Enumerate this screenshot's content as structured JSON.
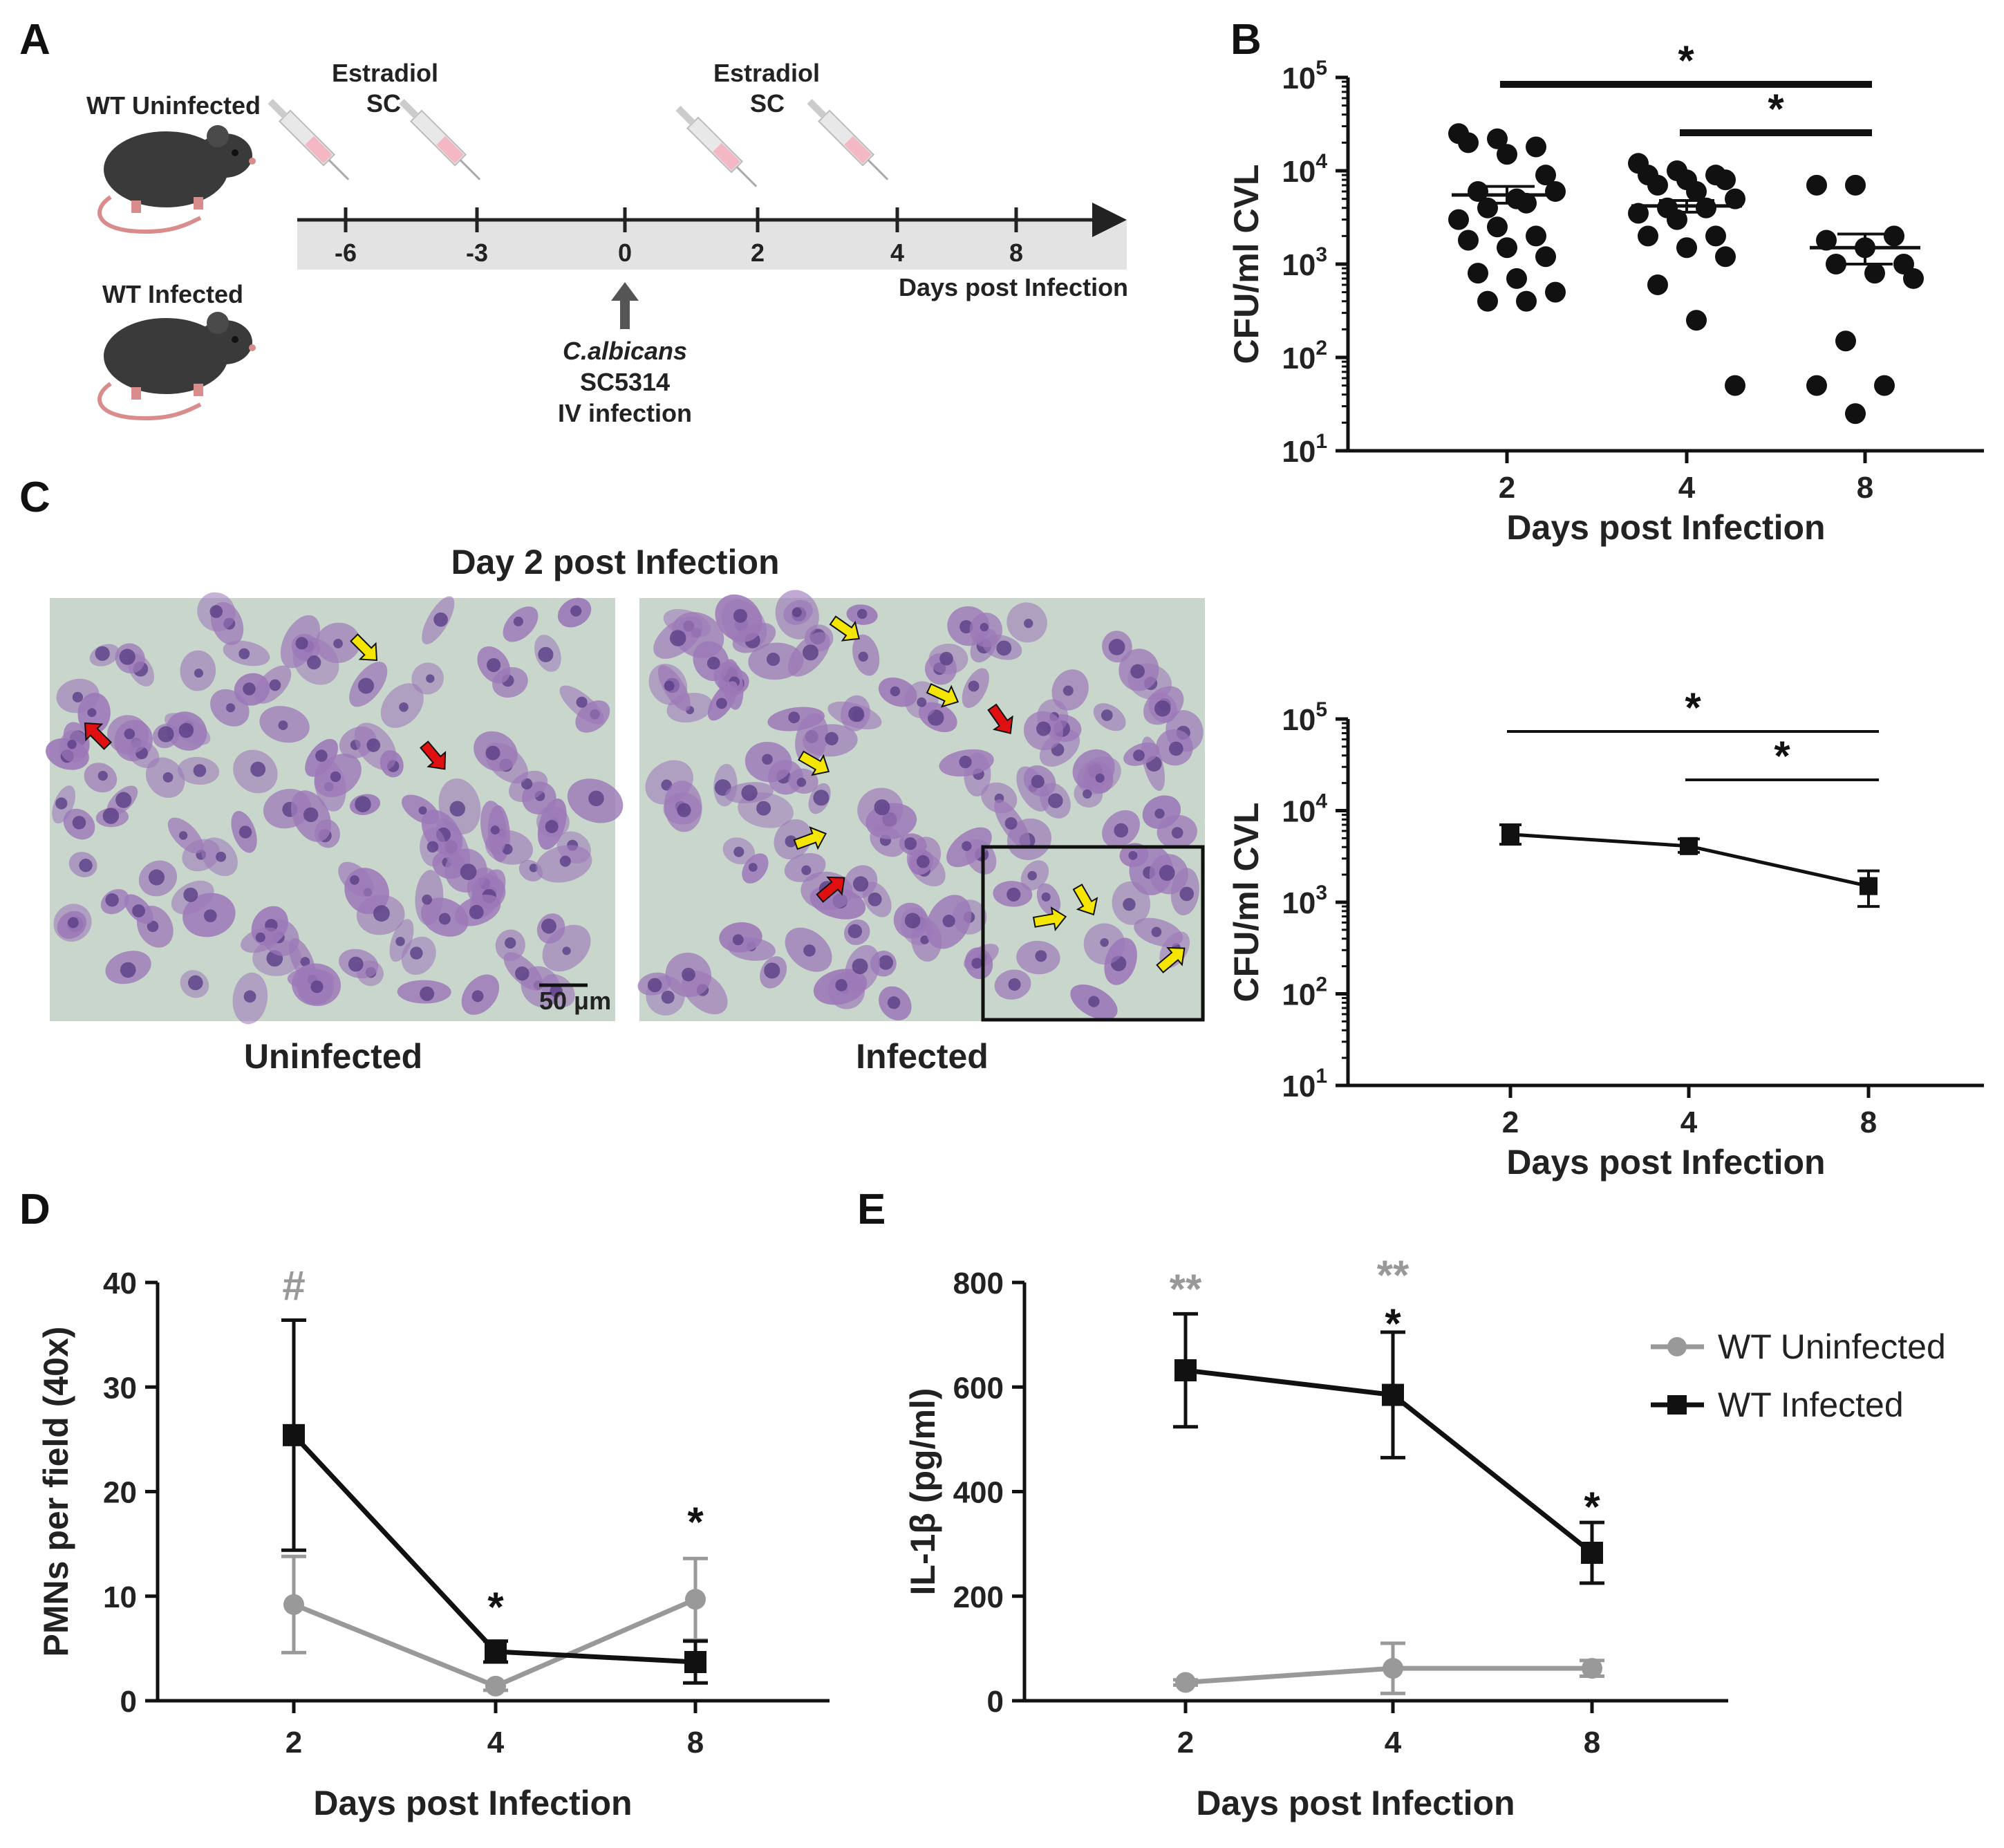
{
  "colors": {
    "infected": "#111111",
    "uninfected": "#999999",
    "timeline_band": "#e3e3e3",
    "mouse_body": "#3a3a3a",
    "mouse_tail": "#d98c8c",
    "stain_bg": "#c9d6cc",
    "cell": "#9c78b8",
    "nucleus": "#5a3f86",
    "arrow_yellow": "#f4e600",
    "arrow_red": "#e01010"
  },
  "panelA": {
    "letter": "A",
    "groups": [
      "WT Uninfected",
      "WT Infected"
    ],
    "estradiol_label_1": "Estradiol",
    "estradiol_label_2": "SC",
    "timeline_ticks": [
      "-6",
      "-3",
      "0",
      "2",
      "4",
      "8"
    ],
    "axis_label": "Days post Infection",
    "infection_lines": [
      "C.albicans",
      "SC5314",
      "IV infection"
    ]
  },
  "panelC": {
    "letter": "C",
    "title": "Day 2 post Infection",
    "left_caption": "Uninfected",
    "right_caption": "Infected",
    "scale_bar": "50 μm"
  },
  "chart_data": [
    {
      "panel": "B",
      "type": "scatter",
      "title": "",
      "xlabel": "Days post Infection",
      "ylabel": "CFU/ml CVL",
      "yscale": "log",
      "ylim": [
        10,
        100000
      ],
      "y_ticks": [
        "10^1",
        "10^2",
        "10^3",
        "10^4",
        "10^5"
      ],
      "categories": [
        "2",
        "4",
        "8"
      ],
      "points": [
        [
          25000,
          22000,
          18000,
          20000,
          15000,
          9000,
          6000,
          5000,
          6000,
          4000,
          4500,
          3000,
          2500,
          2000,
          1800,
          1500,
          1200,
          800,
          700,
          500,
          400,
          400
        ],
        [
          12000,
          10000,
          9000,
          9000,
          8000,
          8000,
          7000,
          6000,
          5000,
          4000,
          4000,
          3500,
          3000,
          2000,
          2000,
          1500,
          1200,
          600,
          250,
          50
        ],
        [
          7000,
          7000,
          2000,
          1800,
          1500,
          1000,
          1000,
          800,
          700,
          150,
          50,
          50,
          25
        ]
      ],
      "means": [
        5500,
        4200,
        1500
      ],
      "sem": [
        [
          4500,
          6800
        ],
        [
          3600,
          4800
        ],
        [
          1000,
          2100
        ]
      ],
      "significance": [
        {
          "from": "2",
          "to": "8",
          "label": "*"
        },
        {
          "from": "4",
          "to": "8",
          "label": "*"
        }
      ]
    },
    {
      "panel": "B2",
      "type": "line",
      "title": "",
      "xlabel": "Days post Infection",
      "ylabel": "CFU/ml CVL",
      "yscale": "log",
      "ylim": [
        10,
        100000
      ],
      "y_ticks": [
        "10^1",
        "10^2",
        "10^3",
        "10^4",
        "10^5"
      ],
      "categories": [
        "2",
        "4",
        "8"
      ],
      "values": [
        5500,
        4100,
        1500
      ],
      "err_low": [
        4300,
        3500,
        900
      ],
      "err_high": [
        7000,
        4900,
        2200
      ],
      "significance": [
        {
          "from": "2",
          "to": "8",
          "label": "*"
        },
        {
          "from": "4",
          "to": "8",
          "label": "*"
        }
      ]
    },
    {
      "panel": "D",
      "type": "line",
      "title": "",
      "xlabel": "Days post Infection",
      "ylabel": "PMNs per field (40x)",
      "ylim": [
        0,
        40
      ],
      "y_ticks": [
        0,
        10,
        20,
        30,
        40
      ],
      "categories": [
        "2",
        "4",
        "8"
      ],
      "series": [
        {
          "name": "WT Uninfected",
          "values": [
            9.2,
            1.4,
            9.7
          ],
          "err": [
            4.6,
            0.4,
            3.9
          ]
        },
        {
          "name": "WT Infected",
          "values": [
            25.4,
            4.7,
            3.7
          ],
          "err": [
            11.0,
            1.0,
            2.0
          ]
        }
      ],
      "annotations": [
        {
          "category": "2",
          "label": "#",
          "series": "WT Uninfected"
        },
        {
          "category": "4",
          "label": "*",
          "series": "WT Infected"
        },
        {
          "category": "8",
          "label": "*",
          "series": "WT Infected"
        }
      ]
    },
    {
      "panel": "E",
      "type": "line",
      "title": "",
      "xlabel": "Days post Infection",
      "ylabel": "IL-1β (pg/ml)",
      "ylim": [
        0,
        800
      ],
      "y_ticks": [
        0,
        200,
        400,
        600,
        800
      ],
      "categories": [
        "2",
        "4",
        "8"
      ],
      "series": [
        {
          "name": "WT Uninfected",
          "values": [
            35,
            62,
            62
          ],
          "err": [
            5,
            48,
            15
          ]
        },
        {
          "name": "WT Infected",
          "values": [
            632,
            585,
            283
          ],
          "err": [
            108,
            120,
            58
          ]
        }
      ],
      "annotations": [
        {
          "category": "2",
          "label": "**",
          "series": "WT Uninfected"
        },
        {
          "category": "4",
          "label": "**",
          "series": "WT Uninfected"
        },
        {
          "category": "4",
          "label": "*",
          "series": "WT Infected"
        },
        {
          "category": "8",
          "label": "*",
          "series": "WT Infected"
        }
      ],
      "legend": [
        "WT Uninfected",
        "WT Infected"
      ]
    }
  ]
}
